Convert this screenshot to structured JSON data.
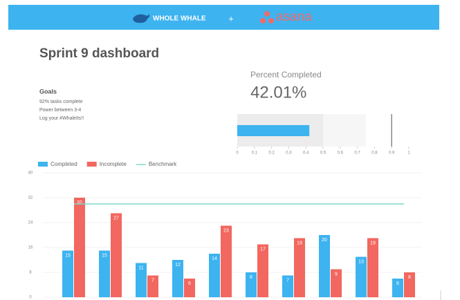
{
  "header": {
    "brand_left": "WHOLE WHALE",
    "plus": "+",
    "brand_right": "asana"
  },
  "dashboard_title": "Sprint 9 dashboard",
  "goals": {
    "title": "Goals",
    "items": [
      "92% tasks complete",
      "Power between 3-4",
      "Log your #WhaleIts!!"
    ]
  },
  "chart_data": [
    {
      "type": "bullet",
      "title": "Percent Completed",
      "value": 0.4201,
      "value_label": "42.01%",
      "color": "#3db3f0",
      "ranges": [
        0.5,
        0.75
      ],
      "range_colors": [
        "#ececec",
        "#f6f6f6"
      ],
      "marker": 0.9,
      "xlim": [
        0,
        1
      ],
      "xticks": [
        0,
        0.1,
        0.2,
        0.3,
        0.4,
        0.5,
        0.6,
        0.7,
        0.8,
        0.9,
        1
      ]
    },
    {
      "type": "bar",
      "categories": [
        null,
        null,
        null,
        null,
        null,
        null,
        null,
        null,
        null,
        null
      ],
      "series": [
        {
          "name": "Completed",
          "color": "#3db3f0",
          "values": [
            15,
            15,
            11,
            12,
            14,
            8,
            7,
            20,
            13,
            6
          ]
        },
        {
          "name": "Incomplete",
          "color": "#f2675f",
          "values": [
            32,
            27,
            7,
            6,
            23,
            17,
            19,
            9,
            19,
            8
          ]
        }
      ],
      "benchmark": {
        "name": "Benchmark",
        "color": "#7fd8c8",
        "value": 30
      },
      "ylim": [
        0,
        40
      ],
      "yticks": [
        0,
        8,
        16,
        24,
        32,
        40
      ],
      "grid": true
    }
  ]
}
